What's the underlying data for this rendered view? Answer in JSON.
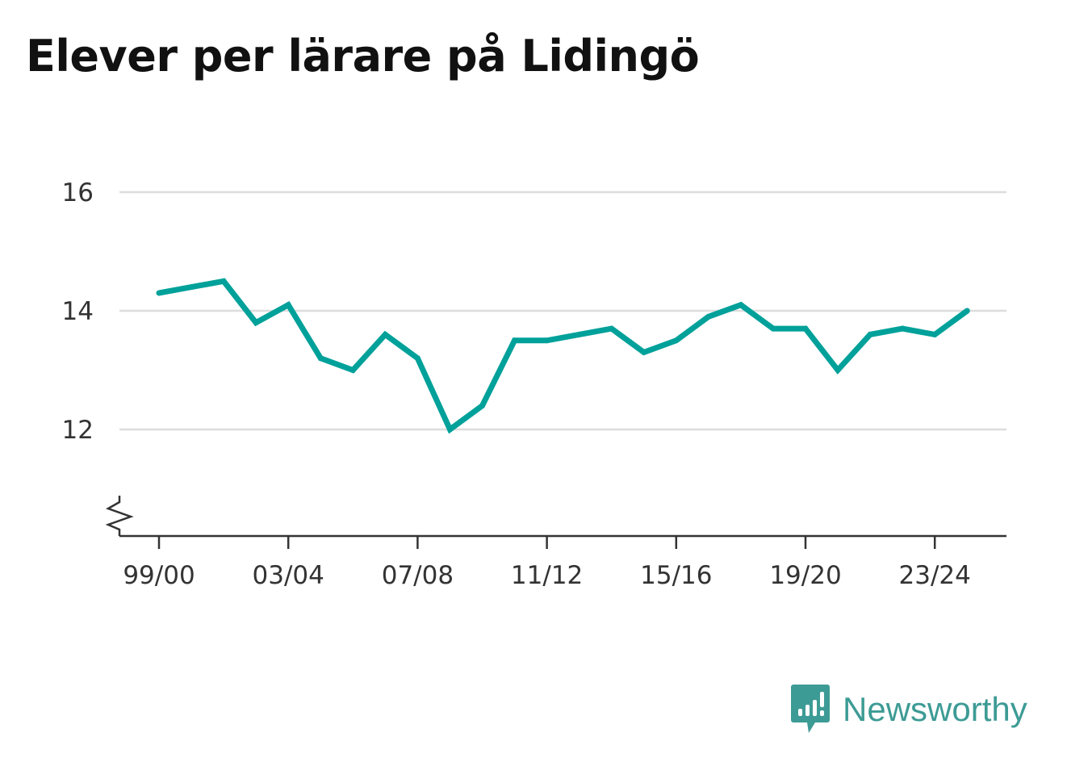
{
  "title": "Elever per lärare på Lidingö",
  "brand": {
    "name": "Newsworthy",
    "icon": "newsworthy-logo-icon",
    "color": "#3d9b95"
  },
  "chart_data": {
    "type": "line",
    "title": "Elever per lärare på Lidingö",
    "xlabel": "",
    "ylabel": "",
    "x": [
      "99/00",
      "00/01",
      "01/02",
      "02/03",
      "03/04",
      "04/05",
      "05/06",
      "06/07",
      "07/08",
      "08/09",
      "09/10",
      "10/11",
      "11/12",
      "12/13",
      "13/14",
      "14/15",
      "15/16",
      "16/17",
      "17/18",
      "18/19",
      "19/20",
      "20/21",
      "21/22",
      "22/23",
      "23/24",
      "24/25"
    ],
    "x_tick_labels": [
      "99/00",
      "03/04",
      "07/08",
      "11/12",
      "15/16",
      "19/20",
      "23/24"
    ],
    "series": [
      {
        "values": [
          14.3,
          14.4,
          14.5,
          13.8,
          14.1,
          13.2,
          13.0,
          13.6,
          13.2,
          12.0,
          12.4,
          13.5,
          13.5,
          13.6,
          13.7,
          13.3,
          13.5,
          13.9,
          14.1,
          13.7,
          13.7,
          13.0,
          13.6,
          13.7,
          13.6,
          14.0
        ],
        "color": "#00a19a"
      }
    ],
    "y_ticks": [
      12,
      14,
      16
    ],
    "ylim": [
      10.4,
      16.6
    ],
    "y_axis_break": true,
    "grid": true,
    "gridline_color": "#dddddd"
  }
}
